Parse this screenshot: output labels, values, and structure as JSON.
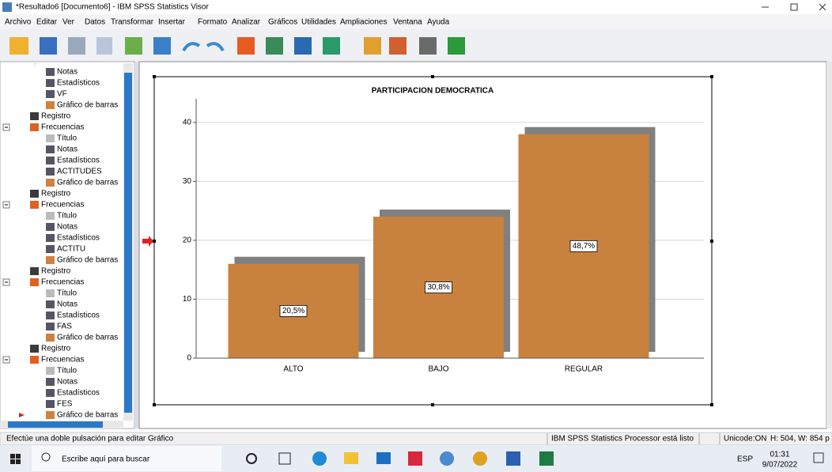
{
  "window": {
    "title": "*Resultado6 [Documento6] - IBM SPSS Statistics Visor"
  },
  "menu": [
    "Archivo",
    "Editar",
    "Ver",
    "Datos",
    "Transformar",
    "Insertar",
    "Formato",
    "Analizar",
    "Gráficos",
    "Utilidades",
    "Ampliaciones",
    "Ventana",
    "Ayuda"
  ],
  "tree": [
    {
      "label": "Notas",
      "depth": 3
    },
    {
      "label": "Estadísticos",
      "depth": 3
    },
    {
      "label": "VF",
      "depth": 3
    },
    {
      "label": "Gráfico de barras",
      "depth": 3
    },
    {
      "label": "Registro",
      "depth": 2
    },
    {
      "label": "Frecuencias",
      "depth": 2
    },
    {
      "label": "Título",
      "depth": 3
    },
    {
      "label": "Notas",
      "depth": 3
    },
    {
      "label": "Estadísticos",
      "depth": 3
    },
    {
      "label": "ACTITUDES",
      "depth": 3
    },
    {
      "label": "Gráfico de barras",
      "depth": 3
    },
    {
      "label": "Registro",
      "depth": 2
    },
    {
      "label": "Frecuencias",
      "depth": 2
    },
    {
      "label": "Título",
      "depth": 3
    },
    {
      "label": "Notas",
      "depth": 3
    },
    {
      "label": "Estadísticos",
      "depth": 3
    },
    {
      "label": "ACTITU",
      "depth": 3
    },
    {
      "label": "Gráfico de barras",
      "depth": 3
    },
    {
      "label": "Registro",
      "depth": 2
    },
    {
      "label": "Frecuencias",
      "depth": 2
    },
    {
      "label": "Título",
      "depth": 3
    },
    {
      "label": "Notas",
      "depth": 3
    },
    {
      "label": "Estadísticos",
      "depth": 3
    },
    {
      "label": "FAS",
      "depth": 3
    },
    {
      "label": "Gráfico de barras",
      "depth": 3
    },
    {
      "label": "Registro",
      "depth": 2
    },
    {
      "label": "Frecuencias",
      "depth": 2
    },
    {
      "label": "Título",
      "depth": 3
    },
    {
      "label": "Notas",
      "depth": 3
    },
    {
      "label": "Estadísticos",
      "depth": 3
    },
    {
      "label": "FES",
      "depth": 3
    },
    {
      "label": "Gráfico de barras",
      "depth": 3
    }
  ],
  "chart_data": {
    "type": "bar",
    "title": "PARTICIPACION DEMOCRATICA",
    "categories": [
      "ALTO",
      "BAJO",
      "REGULAR"
    ],
    "values": [
      16,
      24,
      38
    ],
    "data_labels": [
      "20,5%",
      "30,8%",
      "48,7%"
    ],
    "color": "#c8823e",
    "ylim": [
      0,
      44
    ],
    "yticks": [
      0,
      10,
      20,
      30,
      40
    ],
    "grid": true
  },
  "status": {
    "left": "Efectúe una doble pulsación para editar Gráfico",
    "middle": "IBM SPSS Statistics Processor está listo",
    "unicode": "Unicode:ON",
    "size": "H: 504, W: 854 p"
  },
  "taskbar": {
    "search": "Escribe aquí para buscar",
    "language": "ESP",
    "time": "01:31",
    "date": "9/07/2022"
  }
}
